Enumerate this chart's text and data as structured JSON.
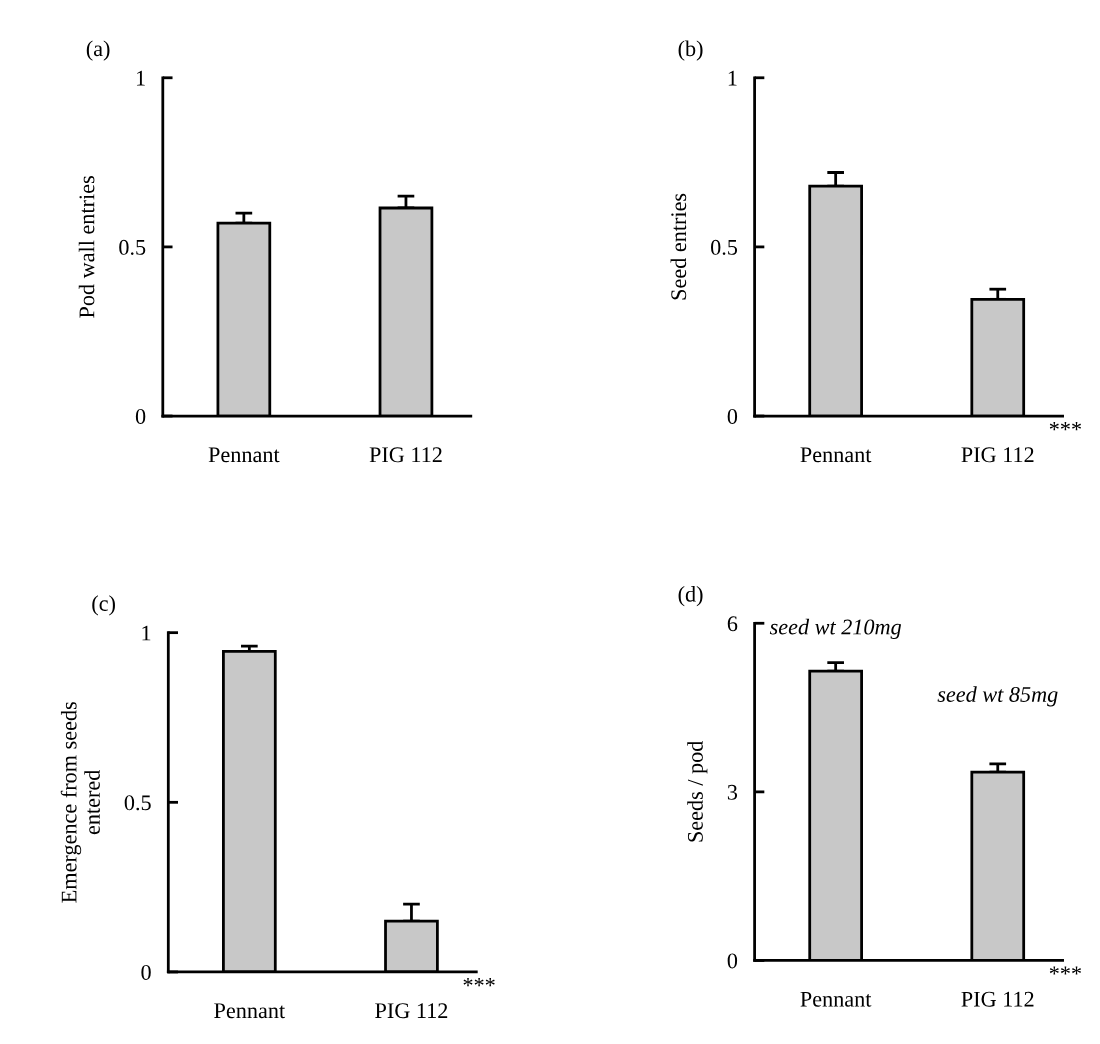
{
  "chart_data": [
    {
      "type": "bar",
      "title": "(a)",
      "ylabel": "Pod wall entries",
      "categories": [
        "Pennant",
        "PIG 112"
      ],
      "values": [
        0.57,
        0.615
      ],
      "errors": [
        [
          0.57,
          0.6
        ],
        [
          0.615,
          0.65
        ]
      ],
      "color": "#c8c8c8",
      "ylim": [
        0,
        1
      ],
      "yticks": [
        0,
        0.5,
        1
      ],
      "grid": false
    },
    {
      "type": "bar",
      "title": "(b)",
      "ylabel": "Seed entries",
      "categories": [
        "Pennant",
        "PIG 112"
      ],
      "values": [
        0.68,
        0.345
      ],
      "errors": [
        [
          0.68,
          0.72
        ],
        [
          0.345,
          0.375
        ]
      ],
      "color": "#c8c8c8",
      "ylim": [
        0,
        1
      ],
      "yticks": [
        0,
        0.5,
        1
      ],
      "grid": false,
      "annotations": [
        "***"
      ]
    },
    {
      "type": "bar",
      "title": "(c)",
      "ylabel": "Emergence from seeds\nentered",
      "categories": [
        "Pennant",
        "PIG 112"
      ],
      "values": [
        0.945,
        0.15
      ],
      "errors": [
        [
          0.945,
          0.96
        ],
        [
          0.15,
          0.2
        ]
      ],
      "color": "#c8c8c8",
      "ylim": [
        0,
        1
      ],
      "yticks": [
        0,
        0.5,
        1
      ],
      "grid": false,
      "annotations": [
        "***"
      ]
    },
    {
      "type": "bar",
      "title": "(d)",
      "ylabel": "Seeds / pod",
      "categories": [
        "Pennant",
        "PIG 112"
      ],
      "values": [
        5.15,
        3.35
      ],
      "errors": [
        [
          5.15,
          5.3
        ],
        [
          3.35,
          3.5
        ]
      ],
      "color": "#c8c8c8",
      "ylim": [
        0,
        6
      ],
      "yticks": [
        0,
        3,
        6
      ],
      "grid": false,
      "annotations": [
        "seed wt 210mg",
        "seed wt 85mg",
        "***"
      ]
    }
  ]
}
